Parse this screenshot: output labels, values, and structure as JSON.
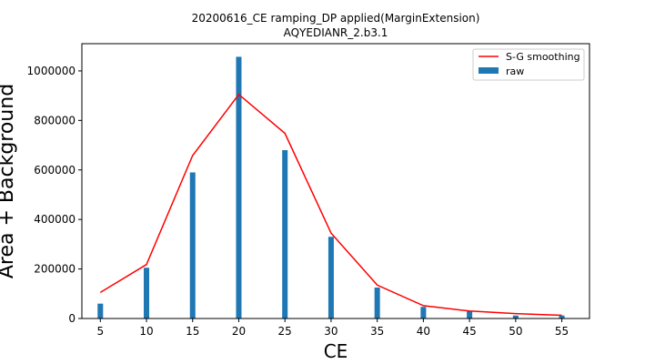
{
  "chart_data": {
    "type": "bar",
    "title": "20200616_CE ramping_DP applied(MarginExtension)",
    "subtitle": "AQYEDIANR_2.b3.1",
    "xlabel": "CE",
    "ylabel": "Area + Background",
    "x": [
      5,
      10,
      15,
      20,
      25,
      30,
      35,
      40,
      45,
      50,
      55
    ],
    "xlim": [
      3,
      58
    ],
    "ylim": [
      0,
      1110000
    ],
    "xticks": [
      "5",
      "10",
      "15",
      "20",
      "25",
      "30",
      "35",
      "40",
      "45",
      "50",
      "55"
    ],
    "yticks": [
      "0",
      "200000",
      "400000",
      "600000",
      "800000",
      "1000000"
    ],
    "grid": false,
    "legend_position": "upper-right",
    "series": [
      {
        "name": "S-G smoothing",
        "kind": "line",
        "color": "#ff0000",
        "values": [
          105000,
          218000,
          658000,
          905000,
          748000,
          345000,
          135000,
          52000,
          30000,
          20000,
          13000
        ]
      },
      {
        "name": "raw",
        "kind": "bar",
        "color": "#1f77b4",
        "values": [
          60000,
          205000,
          590000,
          1057000,
          680000,
          330000,
          125000,
          47000,
          30000,
          12000,
          12000
        ]
      }
    ]
  }
}
